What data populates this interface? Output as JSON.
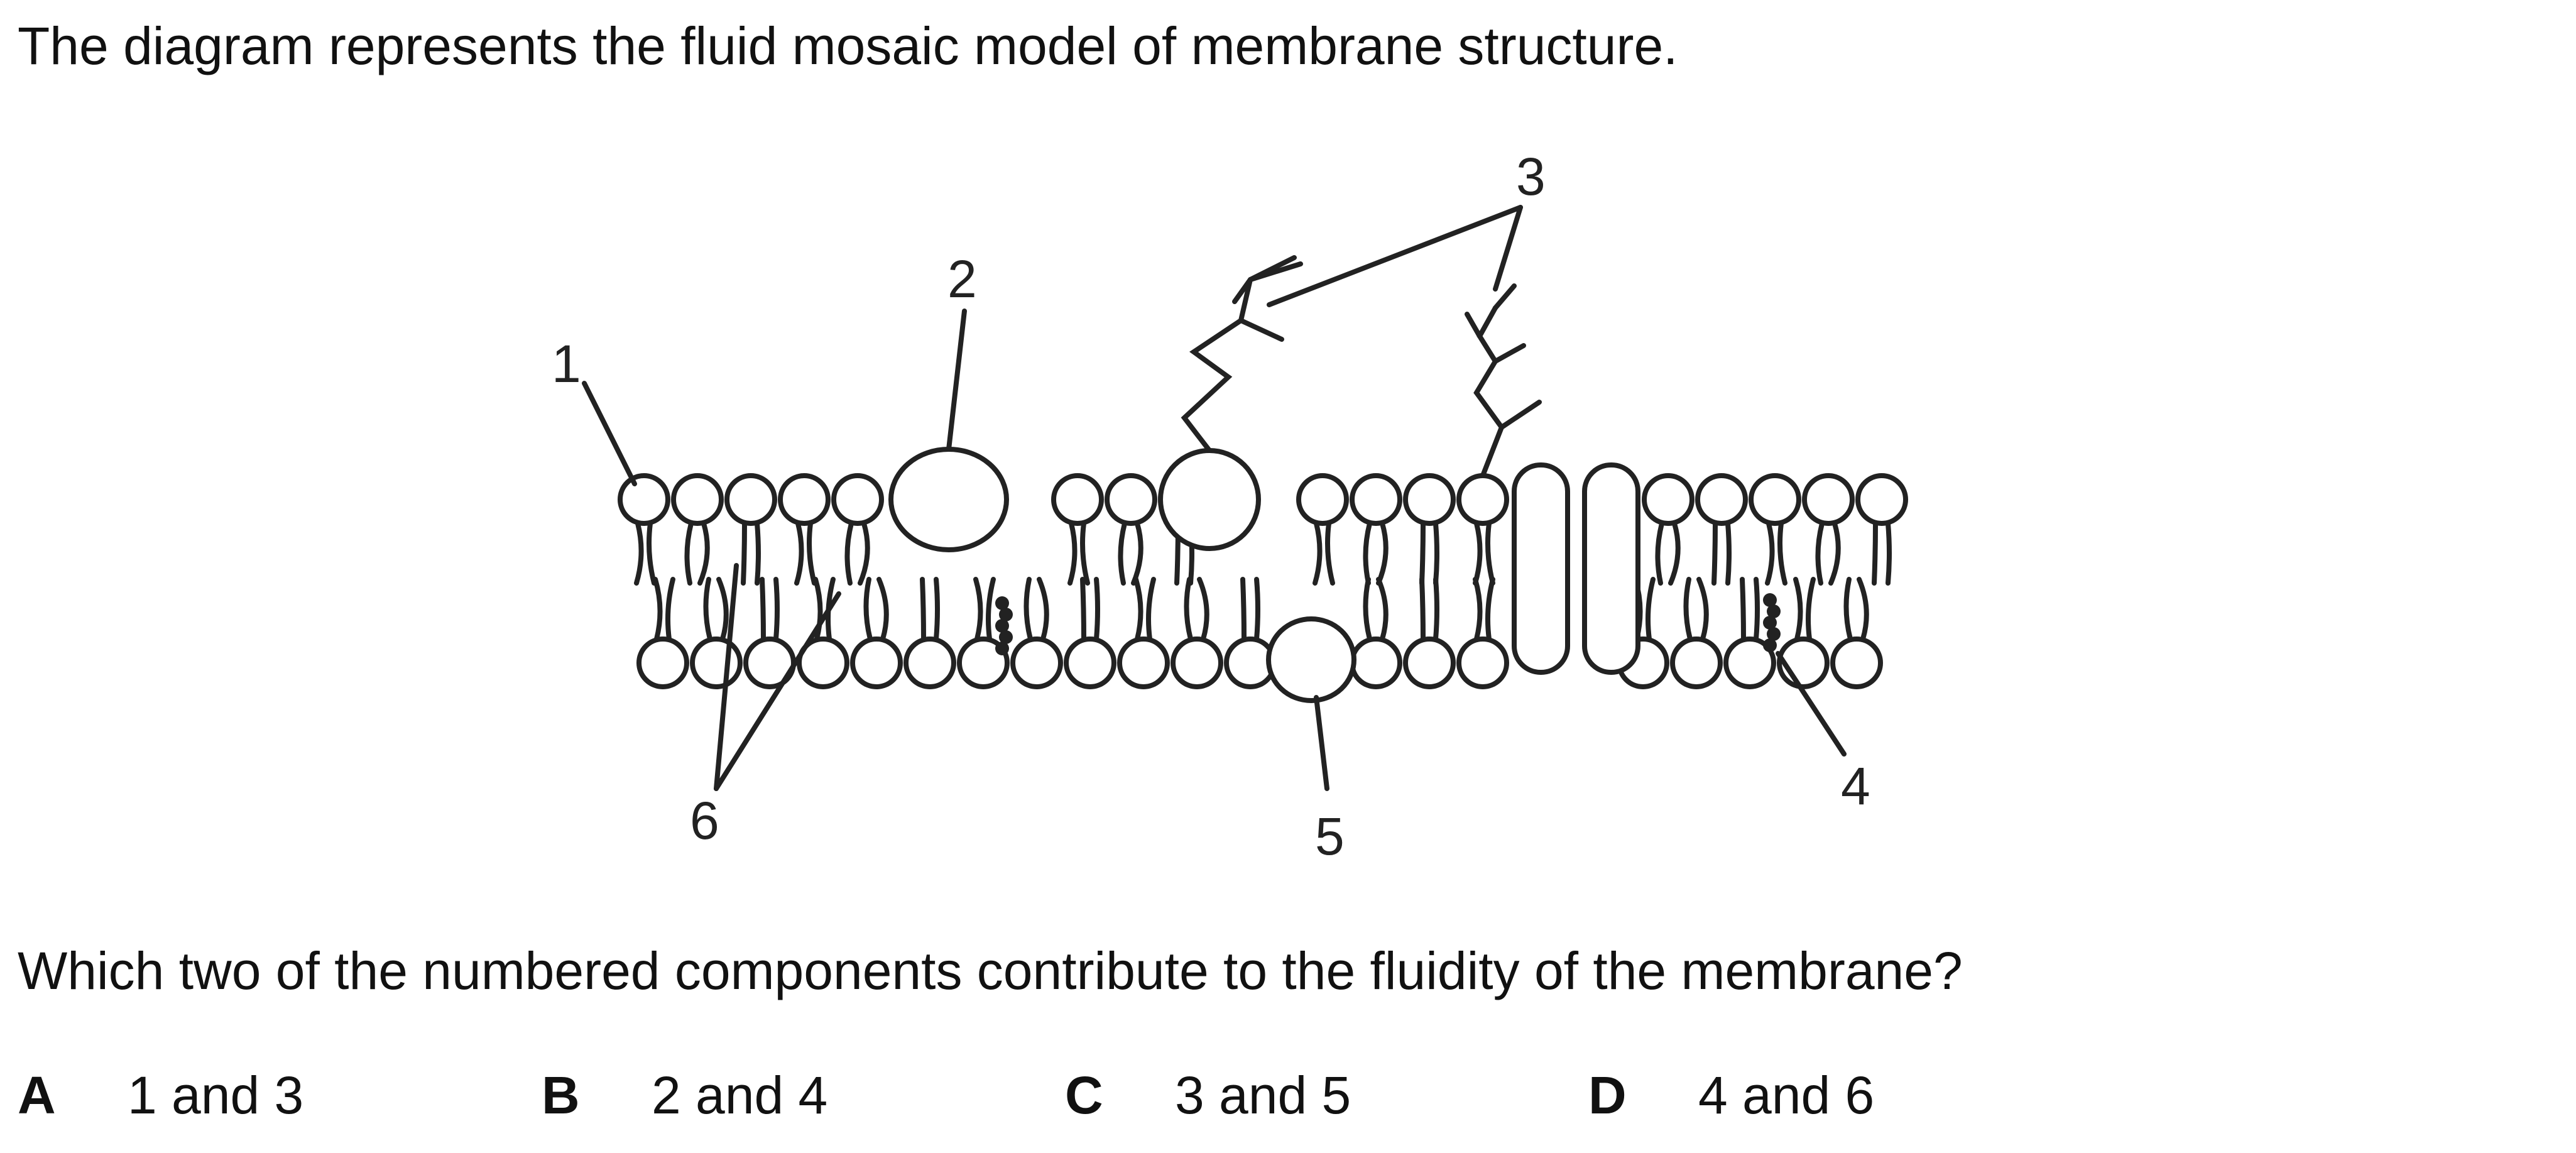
{
  "intro": "The diagram represents the fluid mosaic model of membrane structure.",
  "diagram": {
    "labels": {
      "l1": "1",
      "l2": "2",
      "l3": "3",
      "l4": "4",
      "l5": "5",
      "l6": "6"
    }
  },
  "question": "Which two of the numbered components contribute to the fluidity of the membrane?",
  "options": [
    {
      "letter": "A",
      "text": "1 and 3"
    },
    {
      "letter": "B",
      "text": "2 and 4"
    },
    {
      "letter": "C",
      "text": "3 and 5"
    },
    {
      "letter": "D",
      "text": "4 and 6"
    }
  ]
}
